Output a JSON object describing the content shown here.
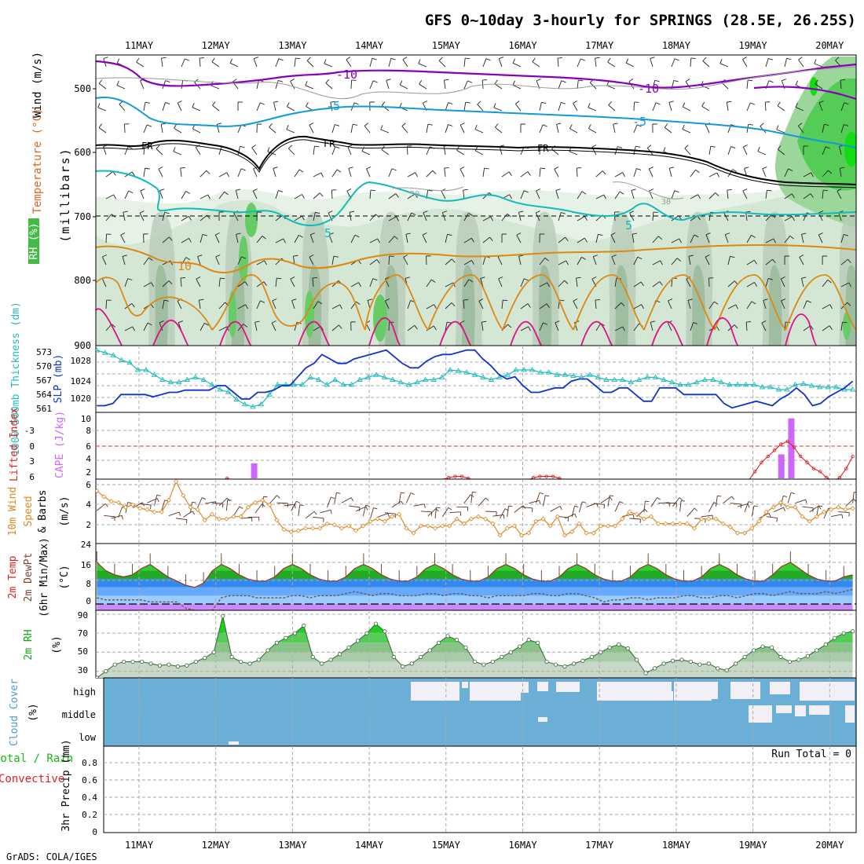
{
  "title": "GFS 0~10day 3-hourly for SPRINGS (28.5E, 26.25S)",
  "credit": "GrADS: COLA/IGES",
  "dates": [
    "11MAY",
    "12MAY",
    "13MAY",
    "14MAY",
    "15MAY",
    "16MAY",
    "17MAY",
    "18MAY",
    "19MAY",
    "20MAY"
  ],
  "colors": {
    "temp_neg10": "#8800bb",
    "temp_neg5": "#1199dd",
    "freezing": "#000000",
    "temp_5": "#11bbbb",
    "temp_10": "#dd8811",
    "temp_15": "#dd1188",
    "thickness": "#22bbbb",
    "slp": "#1133cc",
    "lifted": "#dd2222",
    "cape": "#cc66ff",
    "wind10": "#dd8822",
    "rh2m": "#11bb11",
    "cloud": "#6baed6",
    "precip_total": "#11bb11",
    "precip_conv": "#dd2222"
  },
  "panels": {
    "upper": {
      "ylabel": "(millibars)",
      "legend_wind": "Wind (m/s)",
      "legend_temp": "Temperature (°C)",
      "legend_rh": "RH (%)",
      "ticks": [
        "500",
        "600",
        "700",
        "800",
        "900"
      ],
      "contour_labels": [
        "-10",
        "-10",
        "-5",
        "-5",
        "FR",
        "FR",
        "FR",
        "5",
        "5",
        "10",
        "30",
        "30"
      ]
    },
    "thickness": {
      "label_thk": "1000-500mb Thickness (dm)",
      "label_slp": "SLP (mb)",
      "ticks_thk": [
        "573",
        "570",
        "567",
        "564",
        "561"
      ],
      "ticks_slp": [
        "1028",
        "1024",
        "1020"
      ]
    },
    "cape": {
      "label_li": "Lifted Index",
      "label_cape": "CAPE (J/kg)",
      "ticks_li": [
        "-3",
        "0",
        "3",
        "6"
      ],
      "ticks_cape": [
        "10",
        "8",
        "6",
        "4",
        "2"
      ]
    },
    "wind": {
      "label_a": "10m Wind",
      "label_b": "Speed",
      "label_c": "& Barbs",
      "unit": "(m/s)",
      "ticks": [
        "6",
        "4",
        "2"
      ]
    },
    "temp": {
      "label_a": "2m Temp",
      "label_b": "2m DewPt",
      "label_c": "(6hr Min/Max)",
      "unit": "(°C)",
      "ticks": [
        "24",
        "16",
        "8",
        "0"
      ]
    },
    "rh": {
      "label": "2m RH",
      "unit": "(%)",
      "ticks": [
        "90",
        "70",
        "50",
        "30"
      ]
    },
    "cloud": {
      "label": "Cloud Cover",
      "unit": "(%)",
      "levels": [
        "high",
        "middle",
        "low"
      ]
    },
    "precip": {
      "label_a": "Total / Rain",
      "label_b": "Convective",
      "label_c": "3hr Precip (mm)",
      "run_total": "Run Total = 0",
      "ticks": [
        "0.8",
        "0.6",
        "0.4",
        "0.2",
        "0"
      ]
    }
  },
  "chart_data": [
    {
      "type": "line",
      "name": "1000-500mb Thickness",
      "ylim": [
        561,
        573
      ],
      "values": [
        573,
        572.5,
        572,
        571,
        570.5,
        569,
        569,
        568,
        567,
        566.5,
        566.5,
        567,
        567.5,
        567,
        566,
        565,
        564.5,
        563,
        562,
        561.5,
        562,
        564,
        566,
        566,
        566,
        566,
        567.5,
        567,
        566,
        567,
        566,
        566,
        567,
        567.5,
        568,
        567.5,
        567,
        566.5,
        566,
        566.5,
        567,
        567,
        567.5,
        569,
        568.8,
        568.5,
        568,
        567.5,
        567,
        567.5,
        568,
        569,
        569,
        569,
        568.5,
        568.5,
        568,
        568,
        567.8,
        567.5,
        568,
        567.5,
        567,
        567,
        567,
        566.5,
        567,
        567.5,
        567.5,
        567,
        566.5,
        566,
        566,
        566.5,
        567,
        567,
        566.5,
        566,
        566,
        566,
        566,
        565.5,
        565.5,
        565,
        565,
        566,
        566.2,
        565.8,
        565.5,
        565.5,
        565.5,
        565,
        565
      ]
    },
    {
      "type": "line",
      "name": "SLP",
      "ylim": [
        1017,
        1032
      ],
      "values": [
        1018.5,
        1018.5,
        1019,
        1021,
        1021,
        1021,
        1021,
        1020.5,
        1021,
        1021.5,
        1021.5,
        1022,
        1022,
        1022,
        1022,
        1023,
        1023,
        1021.5,
        1020,
        1020,
        1021.5,
        1021.5,
        1022,
        1023,
        1023,
        1025,
        1027,
        1028,
        1030,
        1029,
        1028,
        1028,
        1029,
        1029.5,
        1030,
        1030.5,
        1031,
        1029.5,
        1028,
        1027,
        1027,
        1028.5,
        1029.5,
        1030,
        1030,
        1030.5,
        1031,
        1031,
        1029,
        1027.5,
        1025.5,
        1024.5,
        1025,
        1023,
        1021.5,
        1021.5,
        1022,
        1022.5,
        1022.5,
        1024,
        1024.5,
        1024.5,
        1023,
        1021.5,
        1021.5,
        1022.5,
        1022.5,
        1021,
        1019.5,
        1019.5,
        1022.5,
        1022.5,
        1022.5,
        1021,
        1021,
        1021,
        1021,
        1021,
        1019,
        1018,
        1018.5,
        1019,
        1019.5,
        1019,
        1018.5,
        1020,
        1021,
        1022.5,
        1021,
        1018.5,
        1019,
        1020.5,
        1021.5,
        1022.5,
        1024
      ]
    },
    {
      "type": "line",
      "name": "Lifted Index",
      "ylim": [
        -5,
        6
      ],
      "values": [
        6,
        6,
        6,
        6,
        6,
        6,
        6,
        6,
        6,
        6,
        6,
        6,
        6,
        6,
        6,
        6,
        6,
        6,
        6,
        6,
        5.6,
        6,
        6,
        6,
        6,
        6,
        6,
        6,
        6,
        6,
        6,
        6,
        6,
        6,
        6,
        6,
        6,
        6,
        6,
        6,
        6,
        6,
        6,
        6,
        6,
        6,
        6,
        6,
        6,
        6,
        6,
        6,
        6,
        5.8,
        5.5,
        5.3,
        5.3,
        5.6,
        6,
        6,
        6,
        6,
        6,
        6,
        6,
        6,
        6,
        5.5,
        5.3,
        5.3,
        5.3,
        5.6,
        6,
        6,
        6,
        6,
        5.8,
        5.8,
        5.8,
        6,
        6,
        6,
        6,
        6,
        6,
        6,
        6,
        6,
        6,
        6,
        6,
        6,
        6,
        6,
        6,
        6,
        6,
        6,
        6,
        6,
        6,
        4.5,
        3,
        2,
        1,
        0,
        -0.5,
        0.5,
        2,
        3,
        4,
        4.5,
        5.5,
        6,
        5.5,
        4,
        2
      ]
    },
    {
      "type": "bar",
      "name": "CAPE",
      "ylim": [
        0,
        11
      ],
      "bars": [
        {
          "day": 1.5,
          "value": 2.5
        },
        {
          "day": 8.37,
          "value": 4
        },
        {
          "day": 8.5,
          "value": 10
        }
      ]
    },
    {
      "type": "line",
      "name": "10m Wind Speed",
      "ylim": [
        0.5,
        6
      ],
      "values": [
        5,
        4.5,
        4.1,
        4,
        3.6,
        3.8,
        3.5,
        3.4,
        3.2,
        3.2,
        4.2,
        5.8,
        4.6,
        3.6,
        3.4,
        2.5,
        3,
        2.6,
        2.6,
        2.8,
        2.8,
        3.6,
        4,
        4.2,
        3.8,
        2.5,
        1.7,
        1.5,
        1.6,
        1.8,
        1.8,
        1.8,
        2.2,
        2.1,
        1.8,
        2,
        1.6,
        2,
        2.4,
        2.6,
        2.4,
        2.8,
        3,
        1.8,
        1.4,
        2,
        2,
        1.8,
        2,
        2,
        2.6,
        2.2,
        2.6,
        2.8,
        2.6,
        2.2,
        1.2,
        1.8,
        2,
        1.2,
        1.4,
        2.4,
        2.6,
        2,
        2.8,
        1.2,
        1.5,
        2.2,
        1.4,
        1.4,
        2,
        2,
        2,
        2.6,
        3.2,
        3,
        2.6,
        2.8,
        2.2,
        2.2,
        2.2,
        2.2,
        2.2,
        1.8,
        2.6,
        2.6,
        2.6,
        2.2,
        1.9,
        1.4,
        1.4,
        1.8,
        2.4,
        3.2,
        3.6,
        4,
        3.6,
        3.6,
        2.8,
        2.4,
        2.8,
        3.2,
        3.4,
        3.6,
        3.4,
        3.5
      ]
    },
    {
      "type": "area",
      "name": "2m Temp",
      "ylim": [
        -3,
        29
      ],
      "values": [
        20,
        16,
        14,
        13,
        14,
        17,
        19,
        16,
        13,
        11,
        9,
        8,
        10,
        16,
        19,
        17,
        14,
        12,
        11,
        11,
        13,
        17,
        19,
        17,
        14,
        12,
        11,
        11,
        13,
        17,
        19,
        17,
        14,
        12,
        11,
        11,
        13,
        17,
        19,
        17,
        14,
        12,
        11,
        11,
        13,
        17,
        19,
        17,
        14,
        12,
        11,
        11,
        13,
        17,
        19,
        17,
        14,
        12,
        11,
        11,
        13,
        17,
        19,
        17,
        14,
        12,
        11,
        11,
        13,
        17,
        19,
        17,
        14,
        12,
        11,
        11,
        14,
        18,
        20,
        17,
        14,
        12,
        11,
        11,
        13,
        14
      ]
    },
    {
      "type": "line",
      "name": "2m DewPt",
      "ylim": [
        -3,
        29
      ],
      "values": [
        3,
        2,
        2,
        2,
        2,
        2,
        1,
        1,
        1,
        1,
        -2,
        -3,
        -4,
        -3,
        3,
        4,
        4,
        4,
        3,
        3,
        3,
        3,
        4,
        4,
        3,
        4,
        4,
        4,
        5,
        6,
        5,
        4,
        5,
        5,
        4,
        4,
        4,
        5,
        5,
        4,
        5,
        5,
        4,
        4,
        3,
        4,
        4,
        4,
        4,
        5,
        5,
        4,
        4,
        5,
        5,
        4,
        3,
        1,
        2,
        2,
        3,
        3,
        2,
        3,
        3,
        3,
        4,
        4,
        3,
        3,
        4,
        4,
        3,
        4,
        5,
        5,
        4,
        5,
        6,
        5,
        5,
        5,
        6,
        5,
        6,
        7
      ]
    },
    {
      "type": "area",
      "name": "2m RH",
      "ylim": [
        23,
        90
      ],
      "values": [
        23,
        30,
        37,
        40,
        40,
        40,
        38,
        36,
        37,
        35,
        36,
        40,
        44,
        50,
        88,
        45,
        40,
        38,
        42,
        52,
        60,
        65,
        70,
        78,
        45,
        38,
        42,
        48,
        55,
        62,
        70,
        80,
        72,
        45,
        35,
        38,
        45,
        52,
        60,
        67,
        63,
        55,
        40,
        37,
        40,
        45,
        50,
        56,
        63,
        60,
        40,
        37,
        35,
        38,
        41,
        45,
        50,
        55,
        58,
        54,
        42,
        28,
        33,
        38,
        41,
        42,
        40,
        37,
        38,
        33,
        31,
        38,
        45,
        52,
        56,
        55,
        45,
        40,
        42,
        46,
        52,
        58,
        65,
        70,
        72
      ]
    },
    {
      "type": "bar",
      "name": "3hr Precip",
      "ylim": [
        0,
        0.9
      ],
      "values": []
    }
  ]
}
